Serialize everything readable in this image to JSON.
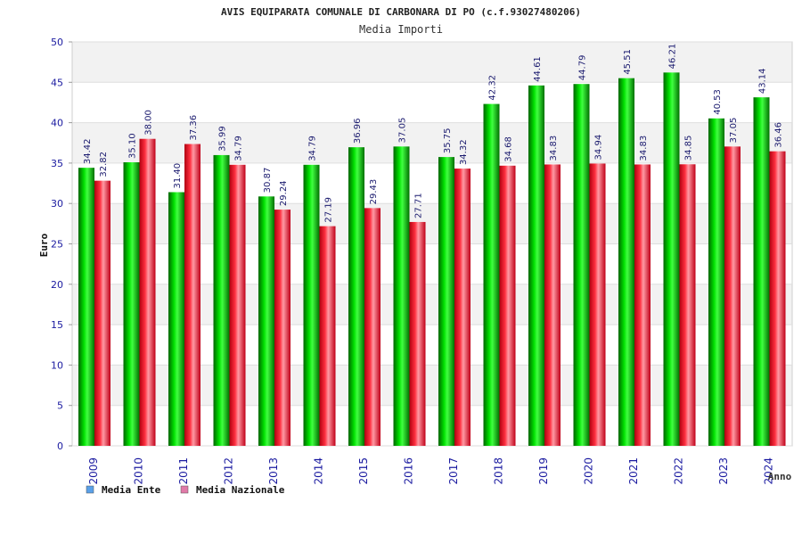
{
  "chart_data": {
    "type": "bar",
    "title": "AVIS EQUIPARATA COMUNALE DI CARBONARA DI PO (c.f.93027480206)",
    "subtitle": "Media Importi",
    "ylabel": "Euro",
    "xlabel": "Anno",
    "ylim": [
      0,
      50
    ],
    "yticks": [
      0,
      5,
      10,
      15,
      20,
      25,
      30,
      35,
      40,
      45,
      50
    ],
    "grid": true,
    "legend_position": "bottom-left",
    "categories": [
      "2009",
      "2010",
      "2011",
      "2012",
      "2013",
      "2014",
      "2015",
      "2016",
      "2017",
      "2018",
      "2019",
      "2020",
      "2021",
      "2022",
      "2023",
      "2024"
    ],
    "series": [
      {
        "name": "Media Ente",
        "color": "#00c000",
        "legend_color": "#5aa0e8",
        "values": [
          34.42,
          35.1,
          31.4,
          35.99,
          30.87,
          34.79,
          36.96,
          37.05,
          35.75,
          42.32,
          44.61,
          44.79,
          45.51,
          46.21,
          40.53,
          43.14
        ],
        "labels": [
          "34.42",
          "35.10",
          "31.40",
          "35.99",
          "30.87",
          "34.79",
          "36.96",
          "37.05",
          "35.75",
          "42.32",
          "44.61",
          "44.79",
          "45.51",
          "46.21",
          "40.53",
          "43.14"
        ]
      },
      {
        "name": "Media Nazionale",
        "color": "#e8102a",
        "legend_color": "#e07aa8",
        "values": [
          32.82,
          38.0,
          37.36,
          34.79,
          29.24,
          27.19,
          29.43,
          27.71,
          34.32,
          34.68,
          34.83,
          34.94,
          34.83,
          34.85,
          37.05,
          36.46
        ],
        "labels": [
          "32.82",
          "38.00",
          "37.36",
          "34.79",
          "29.24",
          "27.19",
          "29.43",
          "27.71",
          "34.32",
          "34.68",
          "34.83",
          "34.94",
          "34.83",
          "34.85",
          "37.05",
          "36.46"
        ]
      }
    ]
  }
}
